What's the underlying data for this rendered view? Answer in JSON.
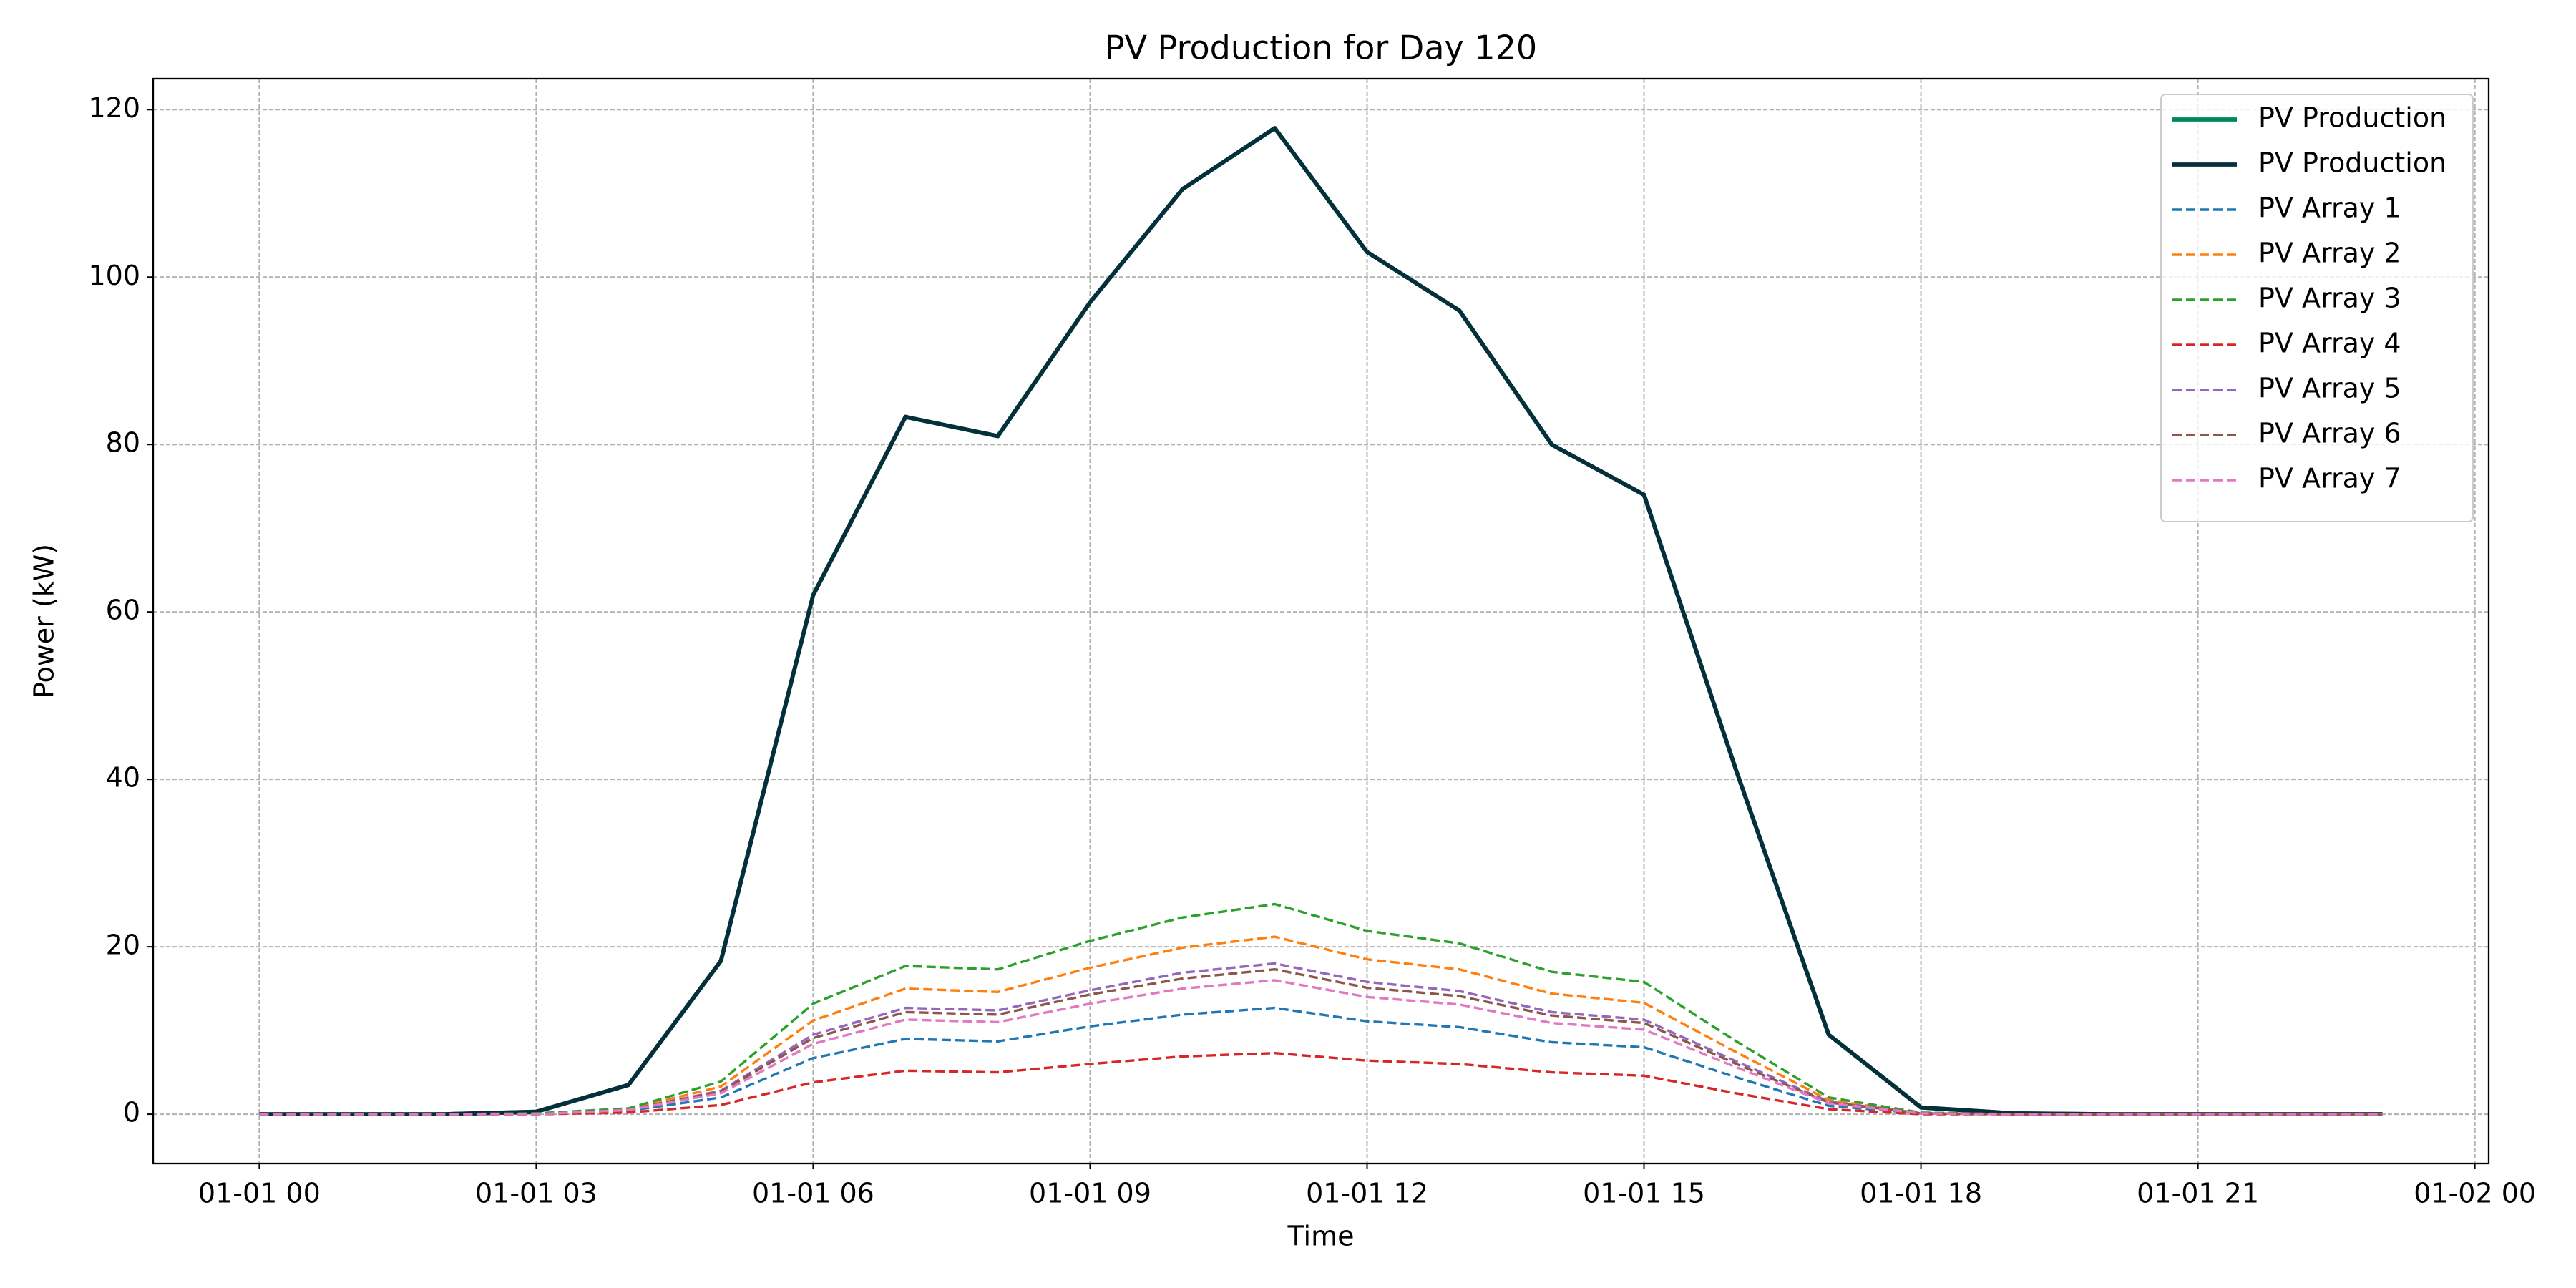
{
  "chart_data": {
    "type": "line",
    "title": "PV Production for Day 120",
    "x_label": "Time",
    "y_label": "Power (kW)",
    "x": [
      0,
      1,
      2,
      3,
      4,
      5,
      6,
      7,
      8,
      9,
      10,
      11,
      12,
      13,
      14,
      15,
      16,
      17,
      18,
      19,
      20,
      21,
      22,
      23
    ],
    "xlim": [
      -1.15,
      24.15
    ],
    "xticks": [
      {
        "value": 0,
        "label": "01-01 00"
      },
      {
        "value": 3,
        "label": "01-01 03"
      },
      {
        "value": 6,
        "label": "01-01 06"
      },
      {
        "value": 9,
        "label": "01-01 09"
      },
      {
        "value": 12,
        "label": "01-01 12"
      },
      {
        "value": 15,
        "label": "01-01 15"
      },
      {
        "value": 18,
        "label": "01-01 18"
      },
      {
        "value": 21,
        "label": "01-01 21"
      },
      {
        "value": 24,
        "label": "01-02 00"
      }
    ],
    "ylim": [
      -5.89,
      123.7
    ],
    "yticks": [
      0,
      20,
      40,
      60,
      80,
      100,
      120
    ],
    "grid": true,
    "legend": "upper right",
    "series": [
      {
        "name": "PV Production",
        "color": "#00875a",
        "linestyle": "solid",
        "values": [
          0,
          0,
          0,
          0.3,
          3.5,
          18.3,
          62,
          83.3,
          81,
          97,
          110.5,
          117.8,
          103,
          96,
          80,
          74,
          41,
          9.5,
          0.8,
          0.1,
          0,
          0,
          0,
          0
        ]
      },
      {
        "name": "PV Production",
        "color": "#05303b",
        "linestyle": "solid",
        "values": [
          0,
          0,
          0,
          0.3,
          3.5,
          18.3,
          62,
          83.3,
          81,
          97,
          110.5,
          117.8,
          103,
          96,
          80,
          74,
          41,
          9.5,
          0.8,
          0.1,
          0,
          0,
          0,
          0
        ]
      },
      {
        "name": "PV Array 1",
        "color": "#1f77b4",
        "linestyle": "dashed",
        "values": [
          0,
          0,
          0,
          0,
          0.4,
          2.0,
          6.7,
          9.0,
          8.7,
          10.5,
          11.9,
          12.7,
          11.1,
          10.4,
          8.6,
          8.0,
          4.4,
          1.0,
          0.1,
          0,
          0,
          0,
          0,
          0
        ]
      },
      {
        "name": "PV Array 2",
        "color": "#ff7f0e",
        "linestyle": "dashed",
        "values": [
          0,
          0,
          0,
          0.1,
          0.6,
          3.3,
          11.2,
          15.0,
          14.6,
          17.5,
          19.9,
          21.2,
          18.5,
          17.3,
          14.4,
          13.3,
          7.4,
          1.7,
          0.1,
          0,
          0,
          0,
          0,
          0
        ]
      },
      {
        "name": "PV Array 3",
        "color": "#2ca02c",
        "linestyle": "dashed",
        "values": [
          0,
          0,
          0,
          0.1,
          0.7,
          3.9,
          13.2,
          17.7,
          17.3,
          20.7,
          23.5,
          25.1,
          21.9,
          20.4,
          17.0,
          15.8,
          8.7,
          2.0,
          0.2,
          0,
          0,
          0,
          0,
          0
        ]
      },
      {
        "name": "PV Array 4",
        "color": "#d62728",
        "linestyle": "dashed",
        "values": [
          0,
          0,
          0,
          0,
          0.2,
          1.1,
          3.8,
          5.2,
          5.0,
          6.0,
          6.9,
          7.3,
          6.4,
          6.0,
          5.0,
          4.6,
          2.5,
          0.6,
          0,
          0,
          0,
          0,
          0,
          0
        ]
      },
      {
        "name": "PV Array 5",
        "color": "#9467bd",
        "linestyle": "dashed",
        "values": [
          0,
          0,
          0,
          0,
          0.5,
          2.8,
          9.5,
          12.7,
          12.4,
          14.8,
          16.9,
          18.0,
          15.8,
          14.7,
          12.2,
          11.3,
          6.3,
          1.5,
          0.1,
          0,
          0,
          0,
          0,
          0
        ]
      },
      {
        "name": "PV Array 6",
        "color": "#8c564b",
        "linestyle": "dashed",
        "values": [
          0,
          0,
          0,
          0,
          0.5,
          2.7,
          9.1,
          12.2,
          11.9,
          14.3,
          16.2,
          17.3,
          15.1,
          14.1,
          11.8,
          10.9,
          6.0,
          1.4,
          0.1,
          0,
          0,
          0,
          0,
          0
        ]
      },
      {
        "name": "PV Array 7",
        "color": "#e377c2",
        "linestyle": "dashed",
        "values": [
          0,
          0,
          0,
          0,
          0.5,
          2.5,
          8.4,
          11.3,
          11.0,
          13.2,
          15.0,
          16.0,
          14.0,
          13.1,
          10.9,
          10.1,
          5.6,
          1.3,
          0.1,
          0,
          0,
          0,
          0,
          0
        ]
      }
    ]
  }
}
